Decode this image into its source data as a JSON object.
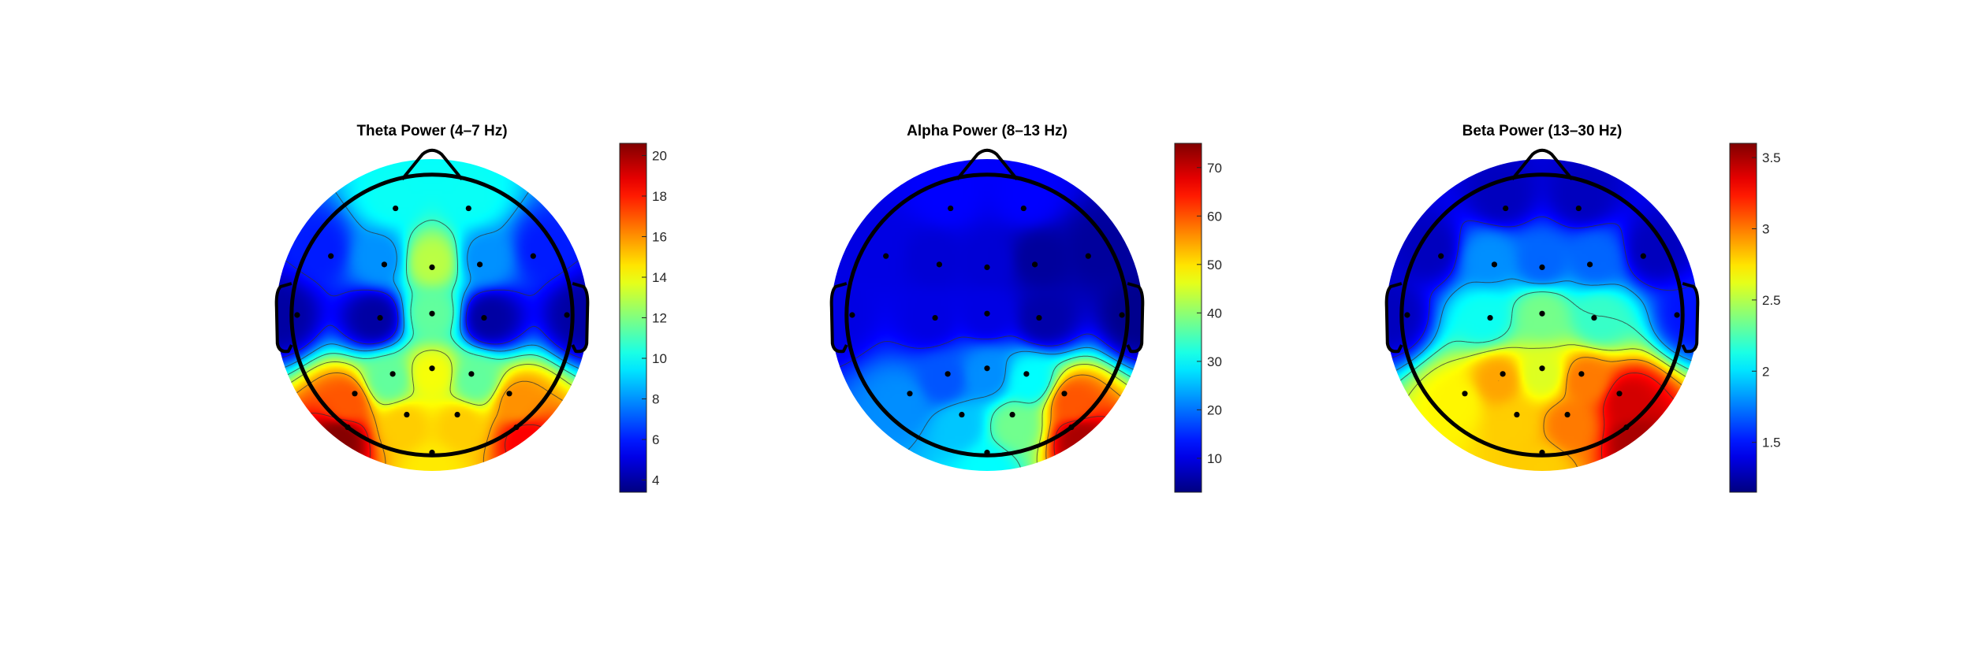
{
  "chart_data": [
    {
      "type": "heatmap",
      "title": "Theta Power (4–7 Hz)",
      "colormap": "jet",
      "colorbar": {
        "range": [
          3.4,
          20.6
        ],
        "ticks": [
          4,
          6,
          8,
          10,
          12,
          14,
          16,
          18,
          20
        ],
        "tick_labels": [
          "4",
          "6",
          "8",
          "10",
          "12",
          "14",
          "16",
          "18",
          "20"
        ]
      },
      "electrodes": [
        {
          "x": -0.26,
          "y": 0.76,
          "v": 10
        },
        {
          "x": 0.26,
          "y": 0.76,
          "v": 10
        },
        {
          "x": -0.72,
          "y": 0.42,
          "v": 6
        },
        {
          "x": -0.34,
          "y": 0.36,
          "v": 8
        },
        {
          "x": 0.0,
          "y": 0.34,
          "v": 13
        },
        {
          "x": 0.34,
          "y": 0.36,
          "v": 8
        },
        {
          "x": 0.72,
          "y": 0.42,
          "v": 6
        },
        {
          "x": -0.96,
          "y": 0.0,
          "v": 4
        },
        {
          "x": -0.37,
          "y": -0.02,
          "v": 4
        },
        {
          "x": 0.0,
          "y": 0.01,
          "v": 11.5
        },
        {
          "x": 0.37,
          "y": -0.02,
          "v": 4
        },
        {
          "x": 0.96,
          "y": 0.0,
          "v": 4
        },
        {
          "x": -0.28,
          "y": -0.42,
          "v": 11.5
        },
        {
          "x": 0.0,
          "y": -0.38,
          "v": 14
        },
        {
          "x": 0.28,
          "y": -0.42,
          "v": 11.5
        },
        {
          "x": -0.55,
          "y": -0.56,
          "v": 17
        },
        {
          "x": 0.55,
          "y": -0.56,
          "v": 16
        },
        {
          "x": -0.18,
          "y": -0.71,
          "v": 15
        },
        {
          "x": 0.18,
          "y": -0.71,
          "v": 15
        },
        {
          "x": -0.6,
          "y": -0.8,
          "v": 20.5
        },
        {
          "x": 0.6,
          "y": -0.8,
          "v": 18.5
        },
        {
          "x": 0.0,
          "y": -0.98,
          "v": 14.5
        }
      ]
    },
    {
      "type": "heatmap",
      "title": "Alpha Power (8–13 Hz)",
      "colormap": "jet",
      "colorbar": {
        "range": [
          3,
          75
        ],
        "ticks": [
          10,
          20,
          30,
          40,
          50,
          60,
          70
        ],
        "tick_labels": [
          "10",
          "20",
          "30",
          "40",
          "50",
          "60",
          "70"
        ]
      },
      "electrodes": [
        {
          "x": -0.26,
          "y": 0.76,
          "v": 12
        },
        {
          "x": 0.26,
          "y": 0.76,
          "v": 12
        },
        {
          "x": -0.72,
          "y": 0.42,
          "v": 10
        },
        {
          "x": -0.34,
          "y": 0.36,
          "v": 9
        },
        {
          "x": 0.0,
          "y": 0.34,
          "v": 9
        },
        {
          "x": 0.34,
          "y": 0.36,
          "v": 5
        },
        {
          "x": 0.72,
          "y": 0.42,
          "v": 5
        },
        {
          "x": -0.96,
          "y": 0.0,
          "v": 10
        },
        {
          "x": -0.37,
          "y": -0.02,
          "v": 10
        },
        {
          "x": 0.0,
          "y": 0.01,
          "v": 10
        },
        {
          "x": 0.37,
          "y": -0.02,
          "v": 6
        },
        {
          "x": 0.96,
          "y": 0.0,
          "v": 4
        },
        {
          "x": -0.28,
          "y": -0.42,
          "v": 18
        },
        {
          "x": 0.0,
          "y": -0.38,
          "v": 22
        },
        {
          "x": 0.28,
          "y": -0.42,
          "v": 30
        },
        {
          "x": -0.55,
          "y": -0.56,
          "v": 22
        },
        {
          "x": 0.55,
          "y": -0.56,
          "v": 60
        },
        {
          "x": -0.18,
          "y": -0.71,
          "v": 26
        },
        {
          "x": 0.18,
          "y": -0.71,
          "v": 38
        },
        {
          "x": 0.6,
          "y": -0.8,
          "v": 72
        },
        {
          "x": 0.0,
          "y": -0.98,
          "v": 30
        }
      ]
    },
    {
      "type": "heatmap",
      "title": "Beta Power (13–30 Hz)",
      "colormap": "jet",
      "colorbar": {
        "range": [
          1.15,
          3.6
        ],
        "ticks": [
          1.5,
          2,
          2.5,
          3,
          3.5
        ],
        "tick_labels": [
          "1.5",
          "2",
          "2.5",
          "3",
          "3.5"
        ]
      },
      "electrodes": [
        {
          "x": -0.26,
          "y": 0.76,
          "v": 1.3
        },
        {
          "x": 0.26,
          "y": 0.76,
          "v": 1.3
        },
        {
          "x": -0.72,
          "y": 0.42,
          "v": 1.3
        },
        {
          "x": -0.34,
          "y": 0.36,
          "v": 1.8
        },
        {
          "x": 0.0,
          "y": 0.34,
          "v": 1.7
        },
        {
          "x": 0.34,
          "y": 0.36,
          "v": 1.7
        },
        {
          "x": 0.72,
          "y": 0.42,
          "v": 1.3
        },
        {
          "x": -0.96,
          "y": 0.0,
          "v": 1.3
        },
        {
          "x": -0.37,
          "y": -0.02,
          "v": 2.1
        },
        {
          "x": 0.0,
          "y": 0.01,
          "v": 2.35
        },
        {
          "x": 0.37,
          "y": -0.02,
          "v": 2.2
        },
        {
          "x": 0.96,
          "y": 0.0,
          "v": 1.5
        },
        {
          "x": -0.28,
          "y": -0.42,
          "v": 2.9
        },
        {
          "x": 0.0,
          "y": -0.38,
          "v": 2.6
        },
        {
          "x": 0.28,
          "y": -0.42,
          "v": 3.0
        },
        {
          "x": -0.55,
          "y": -0.56,
          "v": 2.7
        },
        {
          "x": 0.55,
          "y": -0.56,
          "v": 3.4
        },
        {
          "x": -0.18,
          "y": -0.71,
          "v": 2.8
        },
        {
          "x": 0.18,
          "y": -0.71,
          "v": 3.0
        },
        {
          "x": 0.6,
          "y": -0.8,
          "v": 3.5
        },
        {
          "x": 0.0,
          "y": -0.98,
          "v": 2.8
        }
      ]
    }
  ]
}
